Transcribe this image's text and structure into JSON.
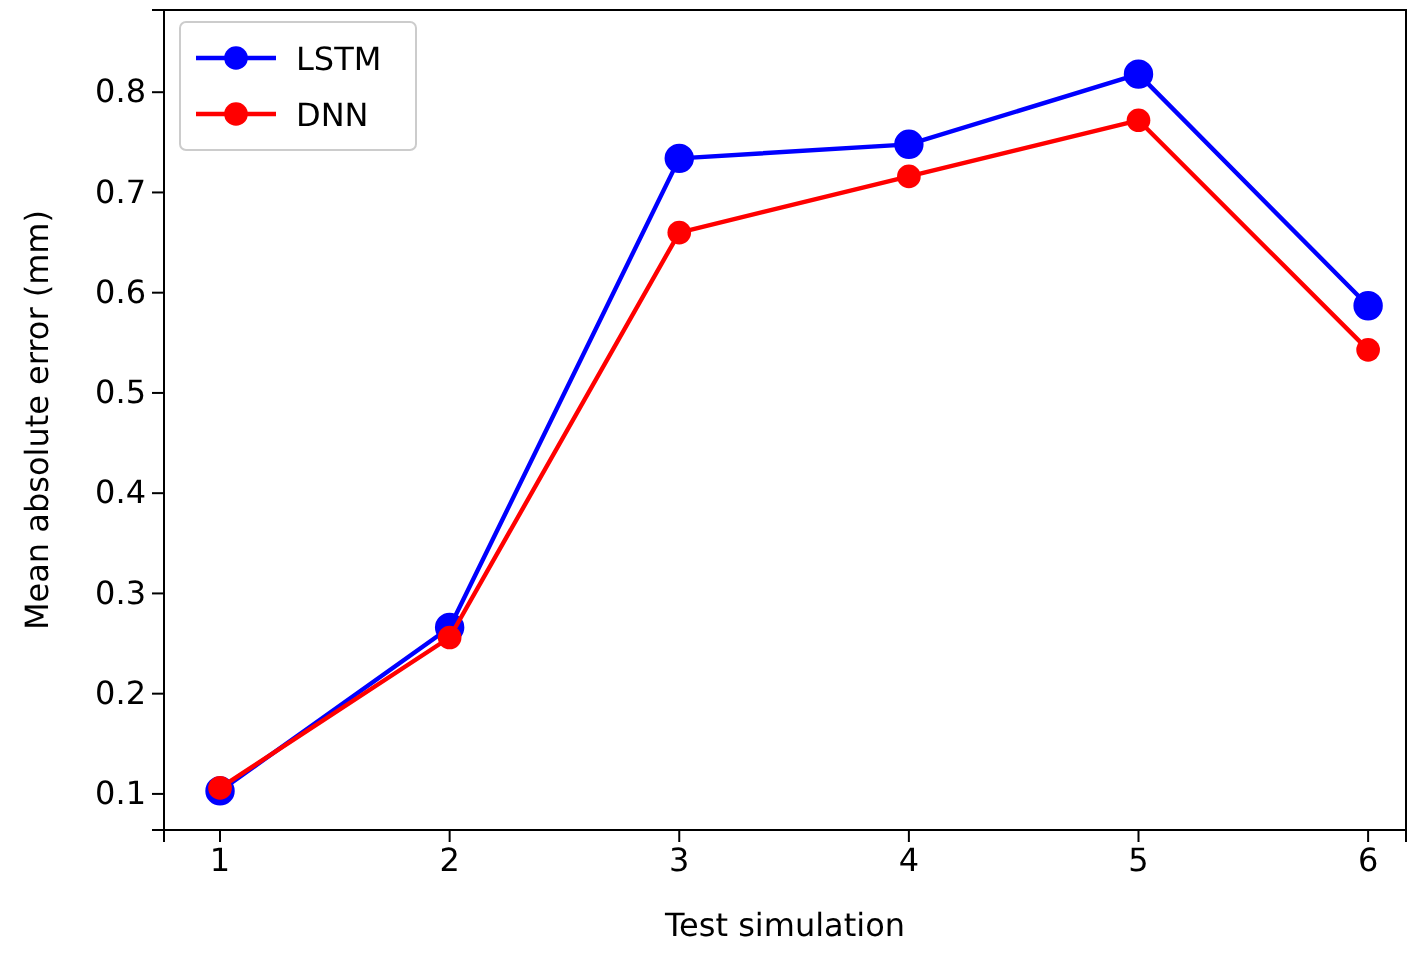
{
  "chart_data": {
    "type": "line",
    "xlabel": "Test simulation",
    "ylabel": "Mean absolute error (mm)",
    "x": [
      1,
      2,
      3,
      4,
      5,
      6
    ],
    "series": [
      {
        "name": "LSTM",
        "color": "#0000ff",
        "values": [
          0.103,
          0.266,
          0.734,
          0.748,
          0.818,
          0.587
        ]
      },
      {
        "name": "DNN",
        "color": "#ff0000",
        "values": [
          0.106,
          0.256,
          0.66,
          0.716,
          0.772,
          0.543
        ]
      }
    ],
    "xlim": [
      0.756,
      6.165
    ],
    "ylim": [
      0.064,
      0.882
    ],
    "xticks": [
      1,
      2,
      3,
      4,
      5,
      6
    ],
    "yticks": [
      0.1,
      0.2,
      0.3,
      0.4,
      0.5,
      0.6,
      0.7,
      0.8
    ],
    "legend": "top left",
    "marker": "circle",
    "line_style": "solid"
  }
}
